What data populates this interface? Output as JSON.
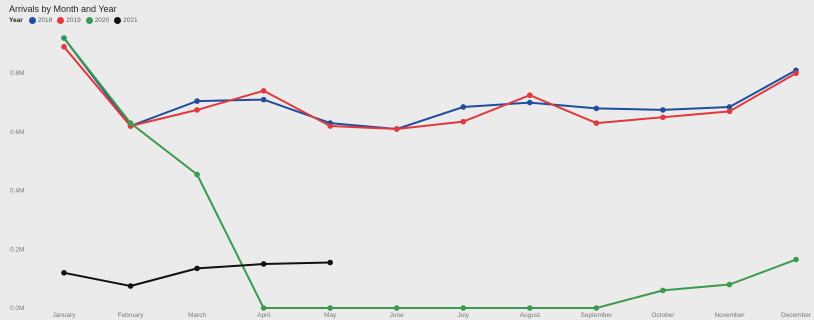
{
  "chart_data": {
    "type": "line",
    "title": "Arrivals by Month and Year",
    "legend_title": "Year",
    "legend_position": "top-left",
    "categories": [
      "January",
      "February",
      "March",
      "April",
      "May",
      "June",
      "July",
      "August",
      "September",
      "October",
      "November",
      "December"
    ],
    "y_ticks": [
      "0.0M",
      "0.2M",
      "0.4M",
      "0.6M",
      "0.8M"
    ],
    "ylim": [
      0,
      0.92
    ],
    "grid": false,
    "series": [
      {
        "name": "2018",
        "color": "#1f4e9c",
        "values": [
          0.92,
          0.62,
          0.705,
          0.71,
          0.63,
          0.61,
          0.685,
          0.7,
          0.68,
          0.675,
          0.685,
          0.81
        ]
      },
      {
        "name": "2019",
        "color": "#e0393e",
        "values": [
          0.89,
          0.62,
          0.675,
          0.74,
          0.62,
          0.61,
          0.635,
          0.725,
          0.63,
          0.65,
          0.67,
          0.8
        ]
      },
      {
        "name": "2020",
        "color": "#3c9a4e",
        "values": [
          0.92,
          0.63,
          0.455,
          0.0,
          0.0,
          0.0,
          0.0,
          0.0,
          0.0,
          0.06,
          0.08,
          0.165
        ]
      },
      {
        "name": "2021",
        "color": "#111111",
        "values": [
          0.12,
          0.075,
          0.135,
          0.15,
          0.155,
          null,
          null,
          null,
          null,
          null,
          null,
          null
        ]
      }
    ]
  }
}
